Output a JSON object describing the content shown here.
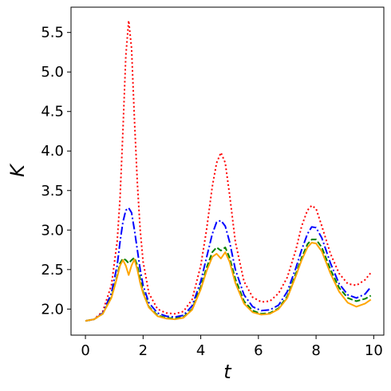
{
  "chart_data": {
    "type": "line",
    "title": "",
    "xlabel": "t",
    "ylabel": "K",
    "xlim": [
      -0.5,
      10.35
    ],
    "ylim": [
      1.67,
      5.82
    ],
    "xticks": [
      0,
      2,
      4,
      6,
      8,
      10
    ],
    "xtick_labels": [
      "0",
      "2",
      "4",
      "6",
      "8",
      "10"
    ],
    "yticks": [
      2.0,
      2.5,
      3.0,
      3.5,
      4.0,
      4.5,
      5.0,
      5.5
    ],
    "ytick_labels": [
      "2.0",
      "2.5",
      "3.0",
      "3.5",
      "4.0",
      "4.5",
      "5.0",
      "5.5"
    ],
    "grid": false,
    "legend": "none",
    "series": [
      {
        "color": "#ff0000",
        "style": "dotted",
        "x": [
          0,
          0.3,
          0.6,
          0.9,
          1.1,
          1.2,
          1.3,
          1.4,
          1.5,
          1.6,
          1.7,
          1.8,
          1.9,
          2.0,
          2.2,
          2.5,
          2.8,
          3.1,
          3.4,
          3.7,
          4.0,
          4.2,
          4.4,
          4.55,
          4.7,
          4.85,
          5.0,
          5.2,
          5.5,
          5.8,
          6.1,
          6.4,
          6.7,
          7.0,
          7.3,
          7.5,
          7.7,
          7.85,
          8.0,
          8.2,
          8.5,
          8.8,
          9.1,
          9.4,
          9.7,
          9.9
        ],
        "y": [
          1.85,
          1.87,
          1.97,
          2.3,
          2.85,
          3.4,
          4.25,
          5.2,
          5.65,
          5.3,
          4.4,
          3.6,
          3.0,
          2.6,
          2.2,
          2.0,
          1.95,
          1.94,
          1.97,
          2.12,
          2.55,
          3.0,
          3.55,
          3.85,
          3.98,
          3.85,
          3.45,
          2.85,
          2.35,
          2.15,
          2.09,
          2.1,
          2.2,
          2.4,
          2.75,
          3.05,
          3.25,
          3.31,
          3.27,
          3.05,
          2.7,
          2.45,
          2.32,
          2.3,
          2.37,
          2.46
        ]
      },
      {
        "color": "#0000ff",
        "style": "dashdot",
        "x": [
          0,
          0.3,
          0.6,
          0.9,
          1.1,
          1.2,
          1.3,
          1.4,
          1.5,
          1.6,
          1.7,
          1.8,
          1.9,
          2.0,
          2.2,
          2.5,
          2.8,
          3.1,
          3.4,
          3.7,
          4.0,
          4.2,
          4.4,
          4.55,
          4.7,
          4.85,
          5.0,
          5.2,
          5.5,
          5.8,
          6.1,
          6.4,
          6.7,
          7.0,
          7.3,
          7.5,
          7.7,
          7.85,
          8.0,
          8.2,
          8.5,
          8.8,
          9.1,
          9.4,
          9.7,
          9.9
        ],
        "y": [
          1.85,
          1.87,
          1.95,
          2.2,
          2.55,
          2.85,
          3.1,
          3.25,
          3.28,
          3.22,
          3.0,
          2.75,
          2.5,
          2.3,
          2.08,
          1.95,
          1.91,
          1.9,
          1.92,
          2.04,
          2.35,
          2.65,
          2.95,
          3.1,
          3.12,
          3.05,
          2.85,
          2.5,
          2.18,
          2.03,
          1.98,
          1.99,
          2.05,
          2.22,
          2.52,
          2.75,
          2.95,
          3.04,
          3.03,
          2.9,
          2.58,
          2.32,
          2.18,
          2.14,
          2.19,
          2.28
        ]
      },
      {
        "color": "#008000",
        "style": "dashed",
        "x": [
          0,
          0.3,
          0.6,
          0.9,
          1.1,
          1.2,
          1.3,
          1.4,
          1.5,
          1.6,
          1.7,
          1.8,
          1.9,
          2.0,
          2.2,
          2.5,
          2.8,
          3.1,
          3.4,
          3.7,
          4.0,
          4.2,
          4.4,
          4.55,
          4.7,
          4.85,
          5.0,
          5.2,
          5.5,
          5.8,
          6.1,
          6.4,
          6.7,
          7.0,
          7.3,
          7.5,
          7.7,
          7.85,
          8.0,
          8.2,
          8.5,
          8.8,
          9.1,
          9.4,
          9.7,
          9.9
        ],
        "y": [
          1.85,
          1.87,
          1.94,
          2.15,
          2.42,
          2.58,
          2.64,
          2.62,
          2.58,
          2.62,
          2.65,
          2.55,
          2.38,
          2.22,
          2.03,
          1.92,
          1.89,
          1.88,
          1.9,
          2.0,
          2.28,
          2.52,
          2.72,
          2.78,
          2.74,
          2.78,
          2.65,
          2.38,
          2.1,
          1.98,
          1.94,
          1.95,
          2.01,
          2.16,
          2.45,
          2.65,
          2.82,
          2.88,
          2.88,
          2.78,
          2.5,
          2.27,
          2.14,
          2.1,
          2.13,
          2.17
        ]
      },
      {
        "color": "#ffa500",
        "style": "solid",
        "x": [
          0,
          0.3,
          0.6,
          0.9,
          1.1,
          1.2,
          1.3,
          1.4,
          1.5,
          1.6,
          1.7,
          1.8,
          1.9,
          2.0,
          2.2,
          2.5,
          2.8,
          3.1,
          3.4,
          3.7,
          4.0,
          4.2,
          4.4,
          4.55,
          4.7,
          4.85,
          5.0,
          5.2,
          5.5,
          5.8,
          6.1,
          6.4,
          6.7,
          7.0,
          7.3,
          7.5,
          7.7,
          7.85,
          8.0,
          8.2,
          8.5,
          8.8,
          9.1,
          9.4,
          9.7,
          9.9
        ],
        "y": [
          1.85,
          1.87,
          1.94,
          2.14,
          2.4,
          2.55,
          2.62,
          2.55,
          2.43,
          2.55,
          2.63,
          2.5,
          2.33,
          2.2,
          2.02,
          1.91,
          1.88,
          1.87,
          1.89,
          1.99,
          2.25,
          2.48,
          2.66,
          2.7,
          2.64,
          2.72,
          2.6,
          2.33,
          2.07,
          1.96,
          1.93,
          1.94,
          2.0,
          2.14,
          2.42,
          2.62,
          2.78,
          2.84,
          2.83,
          2.73,
          2.45,
          2.22,
          2.08,
          2.03,
          2.07,
          2.12
        ]
      }
    ]
  }
}
